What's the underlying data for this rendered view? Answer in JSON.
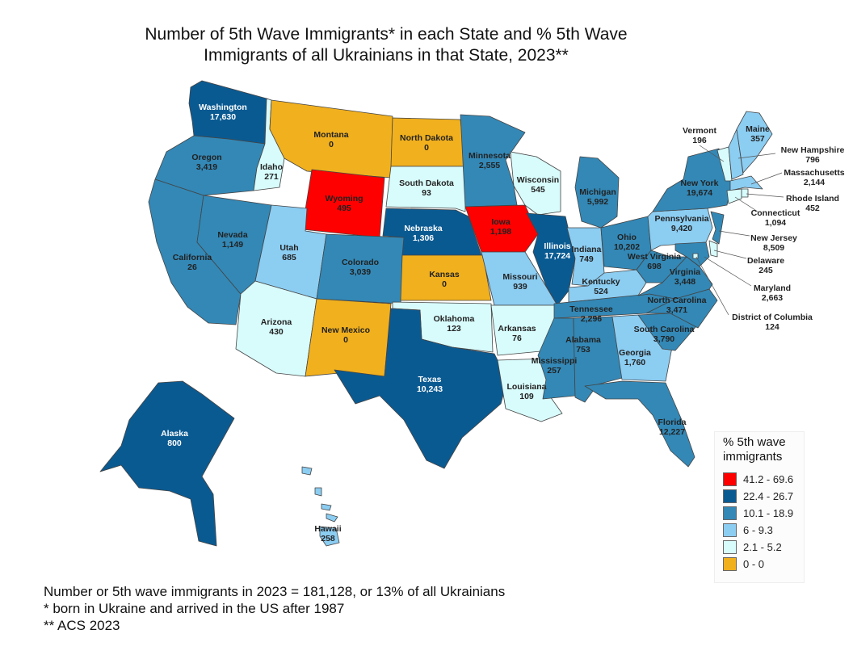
{
  "title": {
    "line1": "Number of 5th Wave Immigrants* in each State and % 5th Wave",
    "line2": "Immigrants of all Ukrainians in that State, 2023**"
  },
  "colors": {
    "red": "#ff0000",
    "dark": "#0a5a92",
    "mid": "#3388b6",
    "light": "#8ccdf2",
    "pale": "#d8fbfb",
    "gold": "#f1b01e",
    "border": "#444444"
  },
  "legend": {
    "title_line1": "% 5th wave",
    "title_line2": "immigrants",
    "items": [
      {
        "label": "41.2 - 69.6",
        "color": "#ff0000"
      },
      {
        "label": "22.4 - 26.7",
        "color": "#0a5a92"
      },
      {
        "label": "10.1 - 18.9",
        "color": "#3388b6"
      },
      {
        "label": "6 - 9.3",
        "color": "#8ccdf2"
      },
      {
        "label": "2.1 - 5.2",
        "color": "#d8fbfb"
      },
      {
        "label": "0 - 0",
        "color": "#f1b01e"
      }
    ]
  },
  "notes": [
    "Number or 5th wave immigrants in 2023 = 181,128, or 13% of all Ukrainians",
    "* born in Ukraine and arrived in the US after 1987",
    "** ACS 2023"
  ],
  "states": [
    {
      "id": "WA",
      "name": "Washington",
      "value": "17,630",
      "cls": "dark"
    },
    {
      "id": "OR",
      "name": "Oregon",
      "value": "3,419",
      "cls": "mid"
    },
    {
      "id": "CA",
      "name": "California",
      "value": "26",
      "cls": "mid"
    },
    {
      "id": "ID",
      "name": "Idaho",
      "value": "271",
      "cls": "pale"
    },
    {
      "id": "NV",
      "name": "Nevada",
      "value": "1,149",
      "cls": "mid"
    },
    {
      "id": "MT",
      "name": "Montana",
      "value": "0",
      "cls": "gold"
    },
    {
      "id": "WY",
      "name": "Wyoming",
      "value": "495",
      "cls": "red"
    },
    {
      "id": "UT",
      "name": "Utah",
      "value": "685",
      "cls": "light"
    },
    {
      "id": "AZ",
      "name": "Arizona",
      "value": "430",
      "cls": "pale"
    },
    {
      "id": "CO",
      "name": "Colorado",
      "value": "3,039",
      "cls": "mid"
    },
    {
      "id": "NM",
      "name": "New Mexico",
      "value": "0",
      "cls": "gold"
    },
    {
      "id": "ND",
      "name": "North Dakota",
      "value": "0",
      "cls": "gold"
    },
    {
      "id": "SD",
      "name": "South Dakota",
      "value": "93",
      "cls": "pale"
    },
    {
      "id": "NE",
      "name": "Nebraska",
      "value": "1,306",
      "cls": "dark"
    },
    {
      "id": "KS",
      "name": "Kansas",
      "value": "0",
      "cls": "gold"
    },
    {
      "id": "OK",
      "name": "Oklahoma",
      "value": "123",
      "cls": "pale"
    },
    {
      "id": "TX",
      "name": "Texas",
      "value": "10,243",
      "cls": "dark"
    },
    {
      "id": "MN",
      "name": "Minnesota",
      "value": "2,555",
      "cls": "mid"
    },
    {
      "id": "IA",
      "name": "Iowa",
      "value": "1,198",
      "cls": "red"
    },
    {
      "id": "MO",
      "name": "Missouri",
      "value": "939",
      "cls": "light"
    },
    {
      "id": "AR",
      "name": "Arkansas",
      "value": "76",
      "cls": "pale"
    },
    {
      "id": "LA",
      "name": "Louisiana",
      "value": "109",
      "cls": "pale"
    },
    {
      "id": "WI",
      "name": "Wisconsin",
      "value": "545",
      "cls": "pale"
    },
    {
      "id": "IL",
      "name": "Illinois",
      "value": "17,724",
      "cls": "dark"
    },
    {
      "id": "MI",
      "name": "Michigan",
      "value": "5,992",
      "cls": "mid"
    },
    {
      "id": "IN",
      "name": "Indiana",
      "value": "749",
      "cls": "light"
    },
    {
      "id": "OH",
      "name": "Ohio",
      "value": "10,202",
      "cls": "mid"
    },
    {
      "id": "KY",
      "name": "Kentucky",
      "value": "524",
      "cls": "light"
    },
    {
      "id": "TN",
      "name": "Tennessee",
      "value": "2,296",
      "cls": "mid"
    },
    {
      "id": "MS",
      "name": "Mississippi",
      "value": "257",
      "cls": "mid"
    },
    {
      "id": "AL",
      "name": "Alabama",
      "value": "753",
      "cls": "mid"
    },
    {
      "id": "GA",
      "name": "Georgia",
      "value": "1,760",
      "cls": "light"
    },
    {
      "id": "FL",
      "name": "Florida",
      "value": "12,227",
      "cls": "mid"
    },
    {
      "id": "SC",
      "name": "South Carolina",
      "value": "3,790",
      "cls": "mid"
    },
    {
      "id": "NC",
      "name": "North Carolina",
      "value": "3,471",
      "cls": "mid"
    },
    {
      "id": "VA",
      "name": "Virginia",
      "value": "3,448",
      "cls": "mid"
    },
    {
      "id": "WV",
      "name": "West Virginia",
      "value": "698",
      "cls": "mid"
    },
    {
      "id": "PA",
      "name": "Pennsylvania",
      "value": "9,420",
      "cls": "light"
    },
    {
      "id": "NY",
      "name": "New York",
      "value": "19,674",
      "cls": "mid"
    },
    {
      "id": "VT",
      "name": "Vermont",
      "value": "196",
      "cls": "pale"
    },
    {
      "id": "ME",
      "name": "Maine",
      "value": "357",
      "cls": "light"
    },
    {
      "id": "NH",
      "name": "New Hampshire",
      "value": "796",
      "cls": "light"
    },
    {
      "id": "MA",
      "name": "Massachusetts",
      "value": "2,144",
      "cls": "light"
    },
    {
      "id": "RI",
      "name": "Rhode Island",
      "value": "452",
      "cls": "pale"
    },
    {
      "id": "CT",
      "name": "Connecticut",
      "value": "1,094",
      "cls": "pale"
    },
    {
      "id": "NJ",
      "name": "New Jersey",
      "value": "8,509",
      "cls": "mid"
    },
    {
      "id": "DE",
      "name": "Delaware",
      "value": "245",
      "cls": "pale"
    },
    {
      "id": "MD",
      "name": "Maryland",
      "value": "2,663",
      "cls": "mid"
    },
    {
      "id": "DC",
      "name": "District of Columbia",
      "value": "124",
      "cls": "pale"
    },
    {
      "id": "AK",
      "name": "Alaska",
      "value": "800",
      "cls": "dark"
    },
    {
      "id": "HI",
      "name": "Hawaii",
      "value": "258",
      "cls": "light"
    }
  ]
}
